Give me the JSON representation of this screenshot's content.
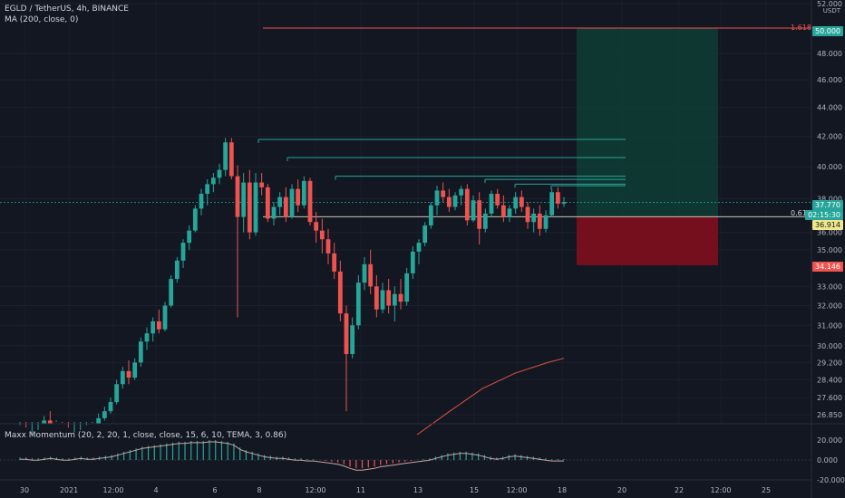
{
  "header": {
    "symbol_line": "EGLD / TetherUS, 4h, BINANCE",
    "ma_line": "MA (200, close, 0)",
    "currency": "USDT"
  },
  "indicator": {
    "legend": "Maxx Momentum (20, 2, 20, 1, close, close, 15, 6, 10, TEMA, 3, 0.86)"
  },
  "badges": {
    "target_label": "1.618",
    "entry_label": "0.618",
    "target_price": "50.000",
    "current_price": "37.770",
    "countdown": "02:15:30",
    "entry_price": "36.914",
    "stop_price": "34.146"
  },
  "colors": {
    "background": "#131722",
    "up": "#26a69a",
    "down": "#ef5350",
    "target_zone": "#0f3b33",
    "stop_zone": "#7a0f1f",
    "ma": "#e0533f",
    "fib_line": "#ef5350",
    "levels": "#26a69a"
  },
  "chart_data": {
    "type": "candlestick",
    "y_axis": {
      "ticks": [
        "52.000",
        "48.000",
        "46.000",
        "44.000",
        "42.000",
        "40.000",
        "38.000",
        "36.000",
        "35.000",
        "33.000",
        "32.000",
        "31.000",
        "30.000",
        "29.200",
        "28.400",
        "27.600",
        "26.850"
      ],
      "scale": "log"
    },
    "x_axis": {
      "ticks": [
        "30",
        "2021",
        "12:00",
        "4",
        "6",
        "8",
        "12:00",
        "11",
        "13",
        "15",
        "12:00",
        "18",
        "20",
        "22",
        "12:00",
        "25"
      ]
    },
    "ohlc": [
      [
        25.9,
        26.4,
        25.6,
        26.1
      ],
      [
        26.1,
        26.3,
        25.7,
        25.8
      ],
      [
        25.8,
        26.0,
        25.5,
        25.9
      ],
      [
        25.9,
        26.2,
        25.7,
        26.0
      ],
      [
        26.0,
        26.8,
        25.9,
        26.6
      ],
      [
        26.6,
        27.0,
        26.2,
        26.3
      ],
      [
        26.3,
        26.6,
        26.0,
        26.4
      ],
      [
        26.4,
        26.5,
        26.0,
        26.1
      ],
      [
        26.1,
        26.3,
        25.8,
        25.9
      ],
      [
        25.9,
        26.1,
        25.7,
        26.0
      ],
      [
        26.0,
        26.2,
        25.8,
        26.1
      ],
      [
        26.1,
        26.4,
        25.9,
        26.2
      ],
      [
        26.2,
        26.5,
        26.0,
        26.4
      ],
      [
        26.4,
        26.9,
        26.3,
        26.7
      ],
      [
        26.7,
        27.2,
        26.6,
        27.0
      ],
      [
        27.0,
        27.6,
        26.9,
        27.4
      ],
      [
        27.4,
        28.4,
        27.3,
        28.2
      ],
      [
        28.2,
        29.0,
        28.0,
        28.8
      ],
      [
        28.8,
        29.3,
        28.2,
        28.5
      ],
      [
        28.5,
        29.4,
        28.4,
        29.2
      ],
      [
        29.2,
        30.4,
        29.0,
        30.2
      ],
      [
        30.2,
        30.9,
        29.8,
        30.6
      ],
      [
        30.6,
        31.4,
        30.2,
        31.2
      ],
      [
        31.2,
        31.8,
        30.6,
        30.8
      ],
      [
        30.8,
        32.2,
        30.7,
        32.0
      ],
      [
        32.0,
        33.6,
        31.9,
        33.4
      ],
      [
        33.4,
        34.6,
        33.2,
        34.4
      ],
      [
        34.4,
        35.6,
        34.0,
        35.4
      ],
      [
        35.4,
        36.4,
        35.0,
        36.1
      ],
      [
        36.1,
        37.6,
        36.0,
        37.4
      ],
      [
        37.4,
        38.6,
        37.0,
        38.3
      ],
      [
        38.3,
        39.2,
        37.6,
        38.9
      ],
      [
        38.9,
        39.6,
        38.4,
        39.3
      ],
      [
        39.3,
        40.2,
        38.9,
        39.8
      ],
      [
        39.8,
        41.9,
        39.4,
        41.6
      ],
      [
        41.6,
        41.9,
        39.2,
        39.4
      ],
      [
        39.4,
        40.1,
        31.4,
        36.9
      ],
      [
        36.9,
        39.6,
        36.0,
        39.0
      ],
      [
        39.0,
        39.8,
        35.6,
        36.0
      ],
      [
        36.0,
        39.6,
        35.8,
        39.0
      ],
      [
        39.0,
        39.6,
        38.2,
        38.7
      ],
      [
        38.7,
        38.9,
        36.6,
        36.8
      ],
      [
        36.8,
        37.8,
        36.4,
        37.5
      ],
      [
        37.5,
        38.4,
        37.0,
        38.1
      ],
      [
        38.1,
        38.7,
        36.6,
        36.9
      ],
      [
        36.9,
        38.9,
        36.8,
        38.6
      ],
      [
        38.6,
        39.2,
        37.2,
        37.6
      ],
      [
        37.6,
        39.4,
        37.4,
        39.1
      ],
      [
        39.1,
        39.3,
        36.4,
        36.6
      ],
      [
        36.6,
        37.2,
        35.4,
        36.1
      ],
      [
        36.1,
        36.8,
        34.8,
        35.6
      ],
      [
        35.6,
        36.2,
        34.2,
        34.8
      ],
      [
        34.8,
        35.4,
        33.4,
        33.8
      ],
      [
        33.8,
        34.4,
        31.2,
        31.6
      ],
      [
        31.6,
        32.0,
        27.0,
        29.6
      ],
      [
        29.6,
        31.4,
        29.4,
        31.0
      ],
      [
        31.0,
        33.6,
        30.8,
        33.2
      ],
      [
        33.2,
        34.6,
        32.8,
        34.2
      ],
      [
        34.2,
        35.0,
        32.6,
        33.0
      ],
      [
        33.0,
        33.6,
        31.4,
        31.8
      ],
      [
        31.8,
        33.2,
        31.6,
        32.8
      ],
      [
        32.8,
        33.4,
        31.6,
        32.0
      ],
      [
        32.0,
        33.0,
        31.2,
        32.6
      ],
      [
        32.6,
        33.4,
        31.8,
        32.2
      ],
      [
        32.2,
        34.0,
        32.0,
        33.7
      ],
      [
        33.7,
        35.2,
        33.4,
        34.9
      ],
      [
        34.9,
        35.6,
        34.2,
        35.4
      ],
      [
        35.4,
        36.6,
        35.2,
        36.4
      ],
      [
        36.4,
        37.8,
        36.2,
        37.6
      ],
      [
        37.6,
        38.8,
        37.0,
        38.5
      ],
      [
        38.5,
        39.0,
        37.8,
        38.1
      ],
      [
        38.1,
        38.6,
        37.2,
        37.5
      ],
      [
        37.5,
        38.4,
        37.3,
        38.2
      ],
      [
        38.2,
        38.8,
        37.6,
        38.6
      ],
      [
        38.6,
        38.9,
        36.4,
        36.7
      ],
      [
        36.7,
        38.2,
        36.6,
        37.9
      ],
      [
        37.9,
        38.4,
        35.3,
        36.2
      ],
      [
        36.2,
        37.4,
        36.0,
        37.1
      ],
      [
        37.1,
        38.5,
        36.9,
        38.3
      ],
      [
        38.3,
        38.6,
        37.4,
        37.6
      ],
      [
        37.6,
        38.2,
        36.6,
        36.9
      ],
      [
        36.9,
        37.6,
        36.6,
        37.4
      ],
      [
        37.4,
        38.4,
        37.1,
        38.1
      ],
      [
        38.1,
        38.5,
        37.2,
        37.5
      ],
      [
        37.5,
        37.8,
        36.2,
        36.6
      ],
      [
        36.6,
        37.4,
        36.0,
        37.1
      ],
      [
        37.1,
        37.6,
        35.8,
        36.2
      ],
      [
        36.2,
        37.3,
        36.0,
        37.0
      ],
      [
        37.0,
        38.6,
        36.9,
        38.4
      ],
      [
        38.4,
        38.7,
        37.4,
        37.7
      ],
      [
        37.7,
        38.1,
        37.5,
        37.8
      ]
    ],
    "ma200": [
      [
        0.74,
        26.0
      ],
      [
        0.78,
        27.0
      ],
      [
        0.82,
        28.0
      ],
      [
        0.86,
        28.7
      ],
      [
        0.9,
        29.2
      ],
      [
        0.92,
        29.4
      ]
    ],
    "levels": [
      41.8,
      40.6,
      39.4,
      39.2,
      38.9,
      38.8
    ],
    "target": 50.0,
    "entry": 36.914,
    "stop": 34.146,
    "current": 37.77,
    "momentum": {
      "y_ticks": [
        "20.000",
        "0.000",
        "-20.000"
      ],
      "histogram": [
        3,
        3,
        2,
        2,
        3,
        4,
        3,
        2,
        2,
        3,
        4,
        3,
        3,
        4,
        5,
        6,
        8,
        10,
        12,
        14,
        16,
        17,
        18,
        19,
        20,
        21,
        22,
        22,
        23,
        23,
        23,
        24,
        24,
        23,
        22,
        20,
        15,
        12,
        10,
        8,
        6,
        5,
        4,
        4,
        3,
        2,
        2,
        1,
        1,
        0,
        -1,
        -2,
        -3,
        -5,
        -8,
        -10,
        -10,
        -9,
        -8,
        -6,
        -5,
        -4,
        -3,
        -2,
        -1,
        0,
        1,
        2,
        4,
        6,
        8,
        9,
        10,
        10,
        9,
        8,
        6,
        4,
        3,
        4,
        6,
        7,
        6,
        5,
        4,
        3,
        2,
        1,
        1,
        1
      ]
    }
  }
}
